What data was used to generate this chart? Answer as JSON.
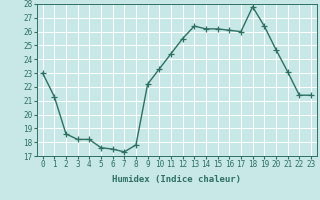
{
  "x": [
    0,
    1,
    2,
    3,
    4,
    5,
    6,
    7,
    8,
    9,
    10,
    11,
    12,
    13,
    14,
    15,
    16,
    17,
    18,
    19,
    20,
    21,
    22,
    23
  ],
  "y": [
    23.0,
    21.3,
    18.6,
    18.2,
    18.2,
    17.6,
    17.5,
    17.3,
    17.8,
    22.2,
    23.3,
    24.4,
    25.5,
    26.4,
    26.2,
    26.2,
    26.1,
    26.0,
    27.8,
    26.4,
    24.7,
    23.1,
    21.4,
    21.4
  ],
  "line_color": "#2e7060",
  "marker": "+",
  "markersize": 4,
  "linewidth": 1.0,
  "xlabel": "Humidex (Indice chaleur)",
  "xlim": [
    -0.5,
    23.5
  ],
  "ylim": [
    17,
    28
  ],
  "yticks": [
    17,
    18,
    19,
    20,
    21,
    22,
    23,
    24,
    25,
    26,
    27,
    28
  ],
  "xticks": [
    0,
    1,
    2,
    3,
    4,
    5,
    6,
    7,
    8,
    9,
    10,
    11,
    12,
    13,
    14,
    15,
    16,
    17,
    18,
    19,
    20,
    21,
    22,
    23
  ],
  "bg_color": "#c8e8e8",
  "grid_color": "#ffffff",
  "tick_color": "#2e7060",
  "label_fontsize": 6.5,
  "tick_fontsize": 5.5
}
